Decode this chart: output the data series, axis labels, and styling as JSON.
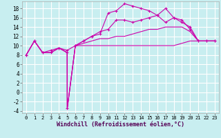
{
  "background_color": "#c8eef0",
  "grid_color": "#ffffff",
  "line_color": "#cc00aa",
  "xlabel": "Windchill (Refroidissement éolien,°C)",
  "xlabel_fontsize": 6.0,
  "xlim": [
    -0.5,
    23.5
  ],
  "ylim": [
    -4.5,
    19.5
  ],
  "xticks": [
    0,
    1,
    2,
    3,
    4,
    5,
    6,
    7,
    8,
    9,
    10,
    11,
    12,
    13,
    14,
    15,
    16,
    17,
    18,
    19,
    20,
    21,
    22,
    23
  ],
  "yticks": [
    -4,
    -2,
    0,
    2,
    4,
    6,
    8,
    10,
    12,
    14,
    16,
    18
  ],
  "tick_fontsize": 5.5,
  "series": [
    {
      "x": [
        0,
        1,
        2,
        3,
        4,
        5,
        5.01,
        6,
        7,
        8,
        9,
        10,
        11,
        12,
        13,
        14,
        15,
        16,
        17,
        18,
        19,
        20,
        21,
        22,
        23
      ],
      "y": [
        8,
        11,
        8.5,
        8.5,
        9.5,
        8.5,
        -3.5,
        10,
        10,
        10,
        10,
        10,
        10,
        10,
        10,
        10,
        10,
        10,
        10,
        10,
        10.5,
        11,
        11,
        11,
        11
      ],
      "marker": false,
      "lw": 0.8
    },
    {
      "x": [
        0,
        1,
        2,
        3,
        4,
        5,
        5.01,
        6,
        7,
        8,
        9,
        10,
        11,
        12,
        13,
        14,
        15,
        16,
        17,
        18,
        19,
        20,
        21,
        22,
        23
      ],
      "y": [
        8,
        11,
        8.5,
        8.5,
        9.5,
        8.5,
        -3.5,
        10,
        10.5,
        11,
        11.5,
        11.5,
        12,
        12,
        12.5,
        13,
        13.5,
        13.5,
        14,
        14,
        14,
        13,
        11,
        11,
        11
      ],
      "marker": false,
      "lw": 0.8
    },
    {
      "x": [
        0,
        1,
        2,
        3,
        4,
        5,
        6,
        7,
        8,
        9,
        10,
        11,
        12,
        13,
        14,
        15,
        16,
        17,
        18,
        19,
        20,
        21,
        22,
        23
      ],
      "y": [
        8,
        11,
        8.5,
        9,
        9.5,
        9,
        10,
        11,
        12,
        13,
        13.5,
        15.5,
        15.5,
        15,
        15.5,
        16,
        16.5,
        15,
        16,
        15.5,
        13.5,
        11,
        11,
        11
      ],
      "marker": true,
      "lw": 0.8
    },
    {
      "x": [
        0,
        1,
        2,
        3,
        4,
        5,
        5.01,
        6,
        7,
        8,
        9,
        10,
        11,
        12,
        13,
        14,
        15,
        16,
        17,
        18,
        19,
        20,
        21,
        22,
        23
      ],
      "y": [
        8,
        11,
        8.5,
        8.5,
        9.5,
        8.5,
        -3.5,
        10,
        11,
        12,
        12.5,
        17,
        17.5,
        19,
        18.5,
        18,
        17.5,
        16.5,
        18,
        16,
        15,
        14,
        11,
        11,
        11
      ],
      "marker": true,
      "lw": 0.8
    }
  ]
}
